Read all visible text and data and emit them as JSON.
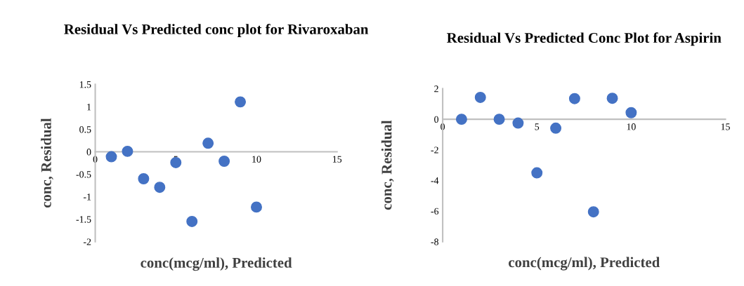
{
  "chart_data": [
    {
      "type": "scatter",
      "title": "Residual Vs Predicted conc plot for Rivaroxaban",
      "xlabel": "conc(mcg/ml), Predicted",
      "ylabel": "conc, Residual",
      "x": [
        1,
        2,
        3,
        4,
        5,
        6,
        7,
        8,
        9,
        10
      ],
      "series": [
        {
          "color": "#4472c4",
          "values": [
            -0.11,
            0.01,
            -0.6,
            -0.79,
            -0.24,
            -1.55,
            0.19,
            -0.21,
            1.11,
            -1.23
          ]
        }
      ],
      "xlim": [
        0,
        15
      ],
      "xticks": [
        0,
        5,
        10,
        15
      ],
      "ylim": [
        -2,
        1.5
      ],
      "yticks": [
        -2,
        -1.5,
        -1,
        -0.5,
        0,
        0.5,
        1,
        1.5
      ],
      "marker": "circle"
    },
    {
      "type": "scatter",
      "title": "Residual Vs Predicted Conc Plot for Aspirin",
      "xlabel": "conc(mcg/ml), Predicted",
      "ylabel": "conc, Residual",
      "x": [
        1,
        2,
        3,
        4,
        5,
        6,
        7,
        8,
        9,
        10
      ],
      "series": [
        {
          "color": "#4472c4",
          "values": [
            0,
            1.43,
            0,
            -0.25,
            -3.5,
            -0.58,
            1.35,
            -6.05,
            1.37,
            0.43
          ]
        }
      ],
      "xlim": [
        0,
        15
      ],
      "xticks": [
        0,
        5,
        10,
        15
      ],
      "ylim": [
        -8,
        2
      ],
      "yticks": [
        -8,
        -6,
        -4,
        -2,
        0,
        2
      ],
      "marker": "circle"
    }
  ]
}
